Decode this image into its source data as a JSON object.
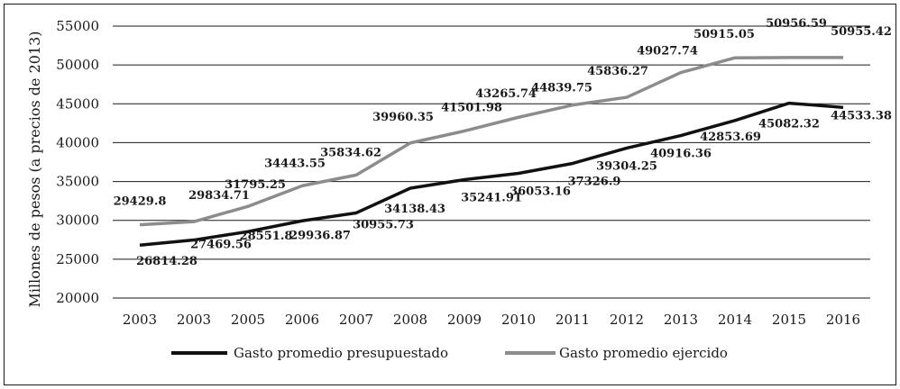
{
  "chart_data": {
    "type": "line",
    "title": "",
    "xlabel": "",
    "ylabel": "Millones de pesos (a precios de 2013)",
    "x": [
      "2003",
      "2003",
      "2005",
      "2006",
      "2007",
      "2008",
      "2009",
      "2010",
      "2011",
      "2012",
      "2013",
      "2014",
      "2015",
      "2016"
    ],
    "ylim": [
      20000,
      55000
    ],
    "yticks": [
      "20000",
      "25000",
      "30000",
      "35000",
      "40000",
      "45000",
      "50000",
      "55000"
    ],
    "grid": "horizontal",
    "legend_position": "bottom",
    "series": [
      {
        "name": "Gasto promedio presupuestado",
        "color": "#111111",
        "values": [
          26814.28,
          27469.56,
          28551.8,
          29936.87,
          30955.73,
          34138.43,
          35241.91,
          36053.16,
          37326.9,
          39304.25,
          40916.36,
          42853.69,
          45082.32,
          44533.38
        ],
        "labels": [
          "26814.28",
          "27469.56",
          "28551.8",
          "29936.87",
          "30955.73",
          "34138.43",
          "35241.91",
          "36053.16",
          "37326.9",
          "39304.25",
          "40916.36",
          "42853.69",
          "45082.32",
          "44533.38"
        ]
      },
      {
        "name": "Gasto promedio ejercido",
        "color": "#8c8c8c",
        "values": [
          29429.8,
          29834.71,
          31795.25,
          34443.55,
          35834.62,
          39960.35,
          41501.98,
          43265.74,
          44839.75,
          45836.27,
          49027.74,
          50915.05,
          50956.59,
          50955.42
        ],
        "labels": [
          "29429.8",
          "29834.71",
          "31795.25",
          "34443.55",
          "35834.62",
          "39960.35",
          "41501.98",
          "43265.74",
          "44839.75",
          "45836.27",
          "49027.74",
          "50915.05",
          "50956.59",
          "50955.42"
        ]
      }
    ]
  }
}
